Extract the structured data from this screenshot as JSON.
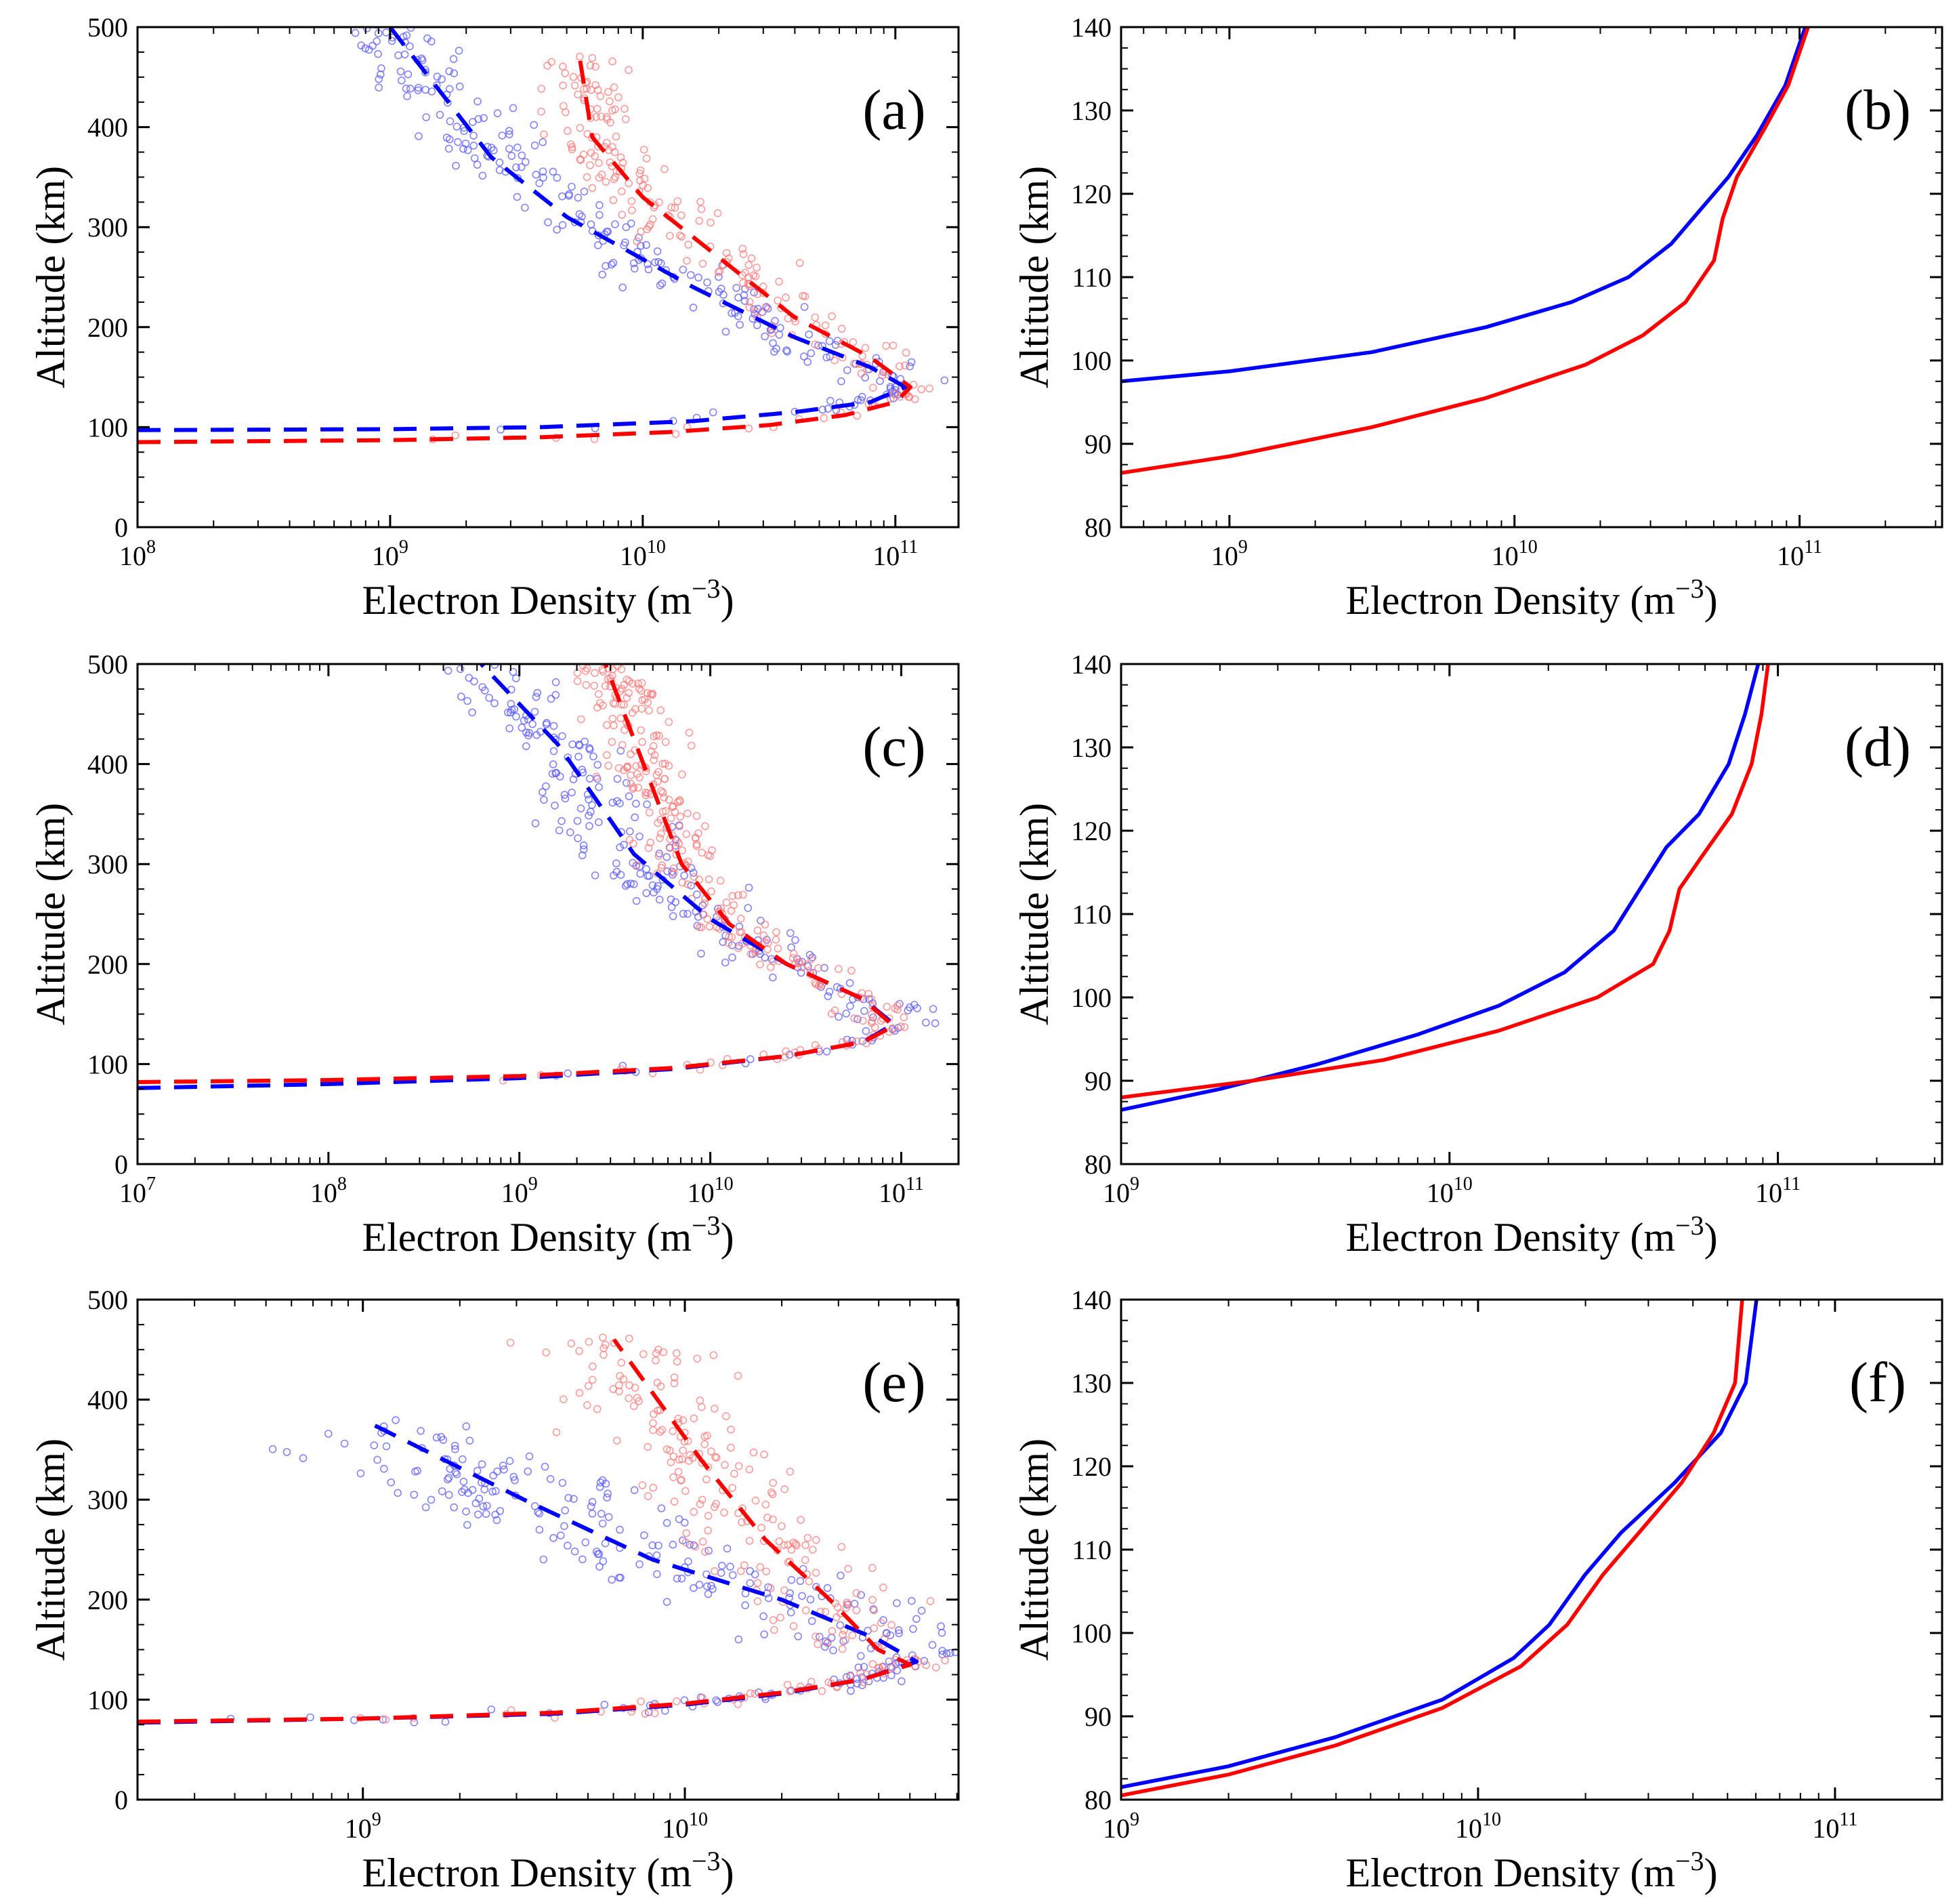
{
  "figure": {
    "colors": {
      "series_blue": "#0000ff",
      "series_red": "#ff0000",
      "axis": "#000000",
      "marker_blue": "#5a5aff",
      "marker_red": "#ff7a7a"
    }
  },
  "chart_data": [
    {
      "panel_label": "(a)",
      "type": "scatter",
      "xlabel": "Electron Density (m",
      "xlabel_sup": "−3",
      "xlabel_close": ")",
      "ylabel": "Altitude (km)",
      "xscale": "log",
      "xlim_exp": [
        8,
        11.25
      ],
      "ylim": [
        0,
        500
      ],
      "xtick_exponents": [
        8,
        9,
        10,
        11
      ],
      "yticks": [
        0,
        100,
        200,
        300,
        400,
        500
      ],
      "series": [
        {
          "color": "blue",
          "style": "dashed",
          "points": [
            [
              8.0,
              97
            ],
            [
              9.0,
              98
            ],
            [
              9.6,
              100
            ],
            [
              10.2,
              106
            ],
            [
              10.6,
              115
            ],
            [
              10.9,
              125
            ],
            [
              11.04,
              140
            ],
            [
              10.9,
              160
            ],
            [
              10.6,
              190
            ],
            [
              10.2,
              240
            ],
            [
              9.7,
              310
            ],
            [
              9.4,
              370
            ],
            [
              9.0,
              500
            ]
          ]
        },
        {
          "color": "red",
          "style": "dashed",
          "points": [
            [
              8.0,
              85
            ],
            [
              9.0,
              87
            ],
            [
              9.6,
              90
            ],
            [
              10.1,
              95
            ],
            [
              10.5,
              102
            ],
            [
              10.8,
              112
            ],
            [
              11.0,
              125
            ],
            [
              11.06,
              140
            ],
            [
              10.9,
              170
            ],
            [
              10.6,
              210
            ],
            [
              10.3,
              270
            ],
            [
              10.0,
              330
            ],
            [
              9.8,
              390
            ],
            [
              9.75,
              470
            ]
          ]
        },
        {
          "color": "blue",
          "style": "markers",
          "n": 260,
          "seed": 11,
          "follow": "blue",
          "spread_exp": 0.22,
          "alt_range": [
            90,
            500
          ]
        },
        {
          "color": "red",
          "style": "markers",
          "n": 240,
          "seed": 23,
          "follow": "red",
          "spread_exp": 0.2,
          "alt_range": [
            85,
            500
          ]
        }
      ]
    },
    {
      "panel_label": "(b)",
      "type": "line",
      "xlabel": "Electron Density (m",
      "xlabel_sup": "−3",
      "xlabel_close": ")",
      "ylabel": "Altitude (km)",
      "xscale": "log",
      "xlim_exp": [
        8.62,
        11.5
      ],
      "ylim": [
        80,
        140
      ],
      "xtick_exponents": [
        9,
        10,
        11
      ],
      "yticks": [
        80,
        90,
        100,
        110,
        120,
        130,
        140
      ],
      "series": [
        {
          "color": "blue",
          "style": "solid",
          "points": [
            [
              8.62,
              97.5
            ],
            [
              9.0,
              98.7
            ],
            [
              9.5,
              101
            ],
            [
              9.9,
              104
            ],
            [
              10.2,
              107
            ],
            [
              10.4,
              110
            ],
            [
              10.55,
              114
            ],
            [
              10.65,
              118
            ],
            [
              10.75,
              122
            ],
            [
              10.85,
              127
            ],
            [
              10.95,
              133
            ],
            [
              11.02,
              140
            ]
          ]
        },
        {
          "color": "red",
          "style": "solid",
          "points": [
            [
              8.62,
              86.5
            ],
            [
              9.0,
              88.5
            ],
            [
              9.5,
              92
            ],
            [
              9.9,
              95.5
            ],
            [
              10.25,
              99.5
            ],
            [
              10.45,
              103
            ],
            [
              10.6,
              107
            ],
            [
              10.7,
              112
            ],
            [
              10.73,
              117
            ],
            [
              10.78,
              122
            ],
            [
              10.88,
              128
            ],
            [
              10.96,
              133
            ],
            [
              11.03,
              140
            ]
          ]
        }
      ]
    },
    {
      "panel_label": "(c)",
      "type": "scatter",
      "xlabel": "Electron Density (m",
      "xlabel_sup": "−3",
      "xlabel_close": ")",
      "ylabel": "Altitude (km)",
      "xscale": "log",
      "xlim_exp": [
        7,
        11.3
      ],
      "ylim": [
        0,
        500
      ],
      "xtick_exponents": [
        7,
        8,
        9,
        10,
        11
      ],
      "yticks": [
        0,
        100,
        200,
        300,
        400,
        500
      ],
      "series": [
        {
          "color": "blue",
          "style": "dashed",
          "points": [
            [
              7.0,
              76
            ],
            [
              8.0,
              80
            ],
            [
              9.0,
              86
            ],
            [
              9.8,
              95
            ],
            [
              10.4,
              108
            ],
            [
              10.8,
              122
            ],
            [
              10.96,
              140
            ],
            [
              10.8,
              165
            ],
            [
              10.4,
              200
            ],
            [
              10.0,
              245
            ],
            [
              9.6,
              310
            ],
            [
              9.2,
              420
            ],
            [
              8.8,
              500
            ]
          ]
        },
        {
          "color": "red",
          "style": "dashed",
          "points": [
            [
              7.0,
              82
            ],
            [
              8.0,
              84
            ],
            [
              9.0,
              88
            ],
            [
              9.8,
              96
            ],
            [
              10.4,
              108
            ],
            [
              10.8,
              122
            ],
            [
              10.96,
              138
            ],
            [
              10.8,
              165
            ],
            [
              10.4,
              200
            ],
            [
              10.1,
              240
            ],
            [
              9.85,
              300
            ],
            [
              9.65,
              400
            ],
            [
              9.45,
              500
            ]
          ]
        },
        {
          "color": "blue",
          "style": "markers",
          "n": 240,
          "seed": 37,
          "follow": "blue",
          "spread_exp": 0.3,
          "alt_range": [
            85,
            500
          ]
        },
        {
          "color": "red",
          "style": "markers",
          "n": 300,
          "seed": 41,
          "follow": "red",
          "spread_exp": 0.22,
          "alt_range": [
            85,
            500
          ]
        }
      ]
    },
    {
      "panel_label": "(d)",
      "type": "line",
      "xlabel": "Electron Density (m",
      "xlabel_sup": "−3",
      "xlabel_close": ")",
      "ylabel": "Altitude (km)",
      "xscale": "log",
      "xlim_exp": [
        9,
        11.5
      ],
      "ylim": [
        80,
        140
      ],
      "xtick_exponents": [
        9,
        10,
        11
      ],
      "yticks": [
        80,
        90,
        100,
        110,
        120,
        130,
        140
      ],
      "series": [
        {
          "color": "blue",
          "style": "solid",
          "points": [
            [
              9.0,
              86.5
            ],
            [
              9.3,
              89
            ],
            [
              9.6,
              92
            ],
            [
              9.9,
              95.5
            ],
            [
              10.15,
              99
            ],
            [
              10.35,
              103
            ],
            [
              10.5,
              108
            ],
            [
              10.58,
              113
            ],
            [
              10.66,
              118
            ],
            [
              10.76,
              122
            ],
            [
              10.85,
              128
            ],
            [
              10.9,
              134
            ],
            [
              10.94,
              140
            ]
          ]
        },
        {
          "color": "red",
          "style": "solid",
          "points": [
            [
              9.0,
              88
            ],
            [
              9.4,
              90
            ],
            [
              9.8,
              92.5
            ],
            [
              10.15,
              96
            ],
            [
              10.45,
              100
            ],
            [
              10.62,
              104
            ],
            [
              10.67,
              108
            ],
            [
              10.7,
              113
            ],
            [
              10.77,
              117
            ],
            [
              10.86,
              122
            ],
            [
              10.92,
              128
            ],
            [
              10.95,
              134
            ],
            [
              10.97,
              140
            ]
          ]
        }
      ]
    },
    {
      "panel_label": "(e)",
      "type": "scatter",
      "xlabel": "Electron Density (m",
      "xlabel_sup": "−3",
      "xlabel_close": ")",
      "ylabel": "Altitude (km)",
      "xscale": "log",
      "xlim_exp": [
        8.3,
        10.85
      ],
      "ylim": [
        0,
        500
      ],
      "xtick_exponents": [
        9,
        10
      ],
      "yticks": [
        0,
        100,
        200,
        300,
        400,
        500
      ],
      "series": [
        {
          "color": "blue",
          "style": "dashed",
          "points": [
            [
              8.3,
              77
            ],
            [
              9.0,
              81
            ],
            [
              9.6,
              86
            ],
            [
              10.0,
              95
            ],
            [
              10.3,
              106
            ],
            [
              10.55,
              120
            ],
            [
              10.72,
              138
            ],
            [
              10.6,
              160
            ],
            [
              10.3,
              200
            ],
            [
              9.9,
              240
            ],
            [
              9.5,
              300
            ],
            [
              9.0,
              380
            ]
          ]
        },
        {
          "color": "red",
          "style": "dashed",
          "points": [
            [
              8.3,
              78
            ],
            [
              9.0,
              81
            ],
            [
              9.6,
              87
            ],
            [
              10.0,
              96
            ],
            [
              10.3,
              107
            ],
            [
              10.55,
              120
            ],
            [
              10.7,
              135
            ],
            [
              10.6,
              150
            ],
            [
              10.45,
              200
            ],
            [
              10.25,
              260
            ],
            [
              10.05,
              340
            ],
            [
              9.78,
              460
            ]
          ]
        },
        {
          "color": "blue",
          "style": "markers",
          "n": 280,
          "seed": 53,
          "follow": "blue",
          "spread_exp": 0.38,
          "alt_range": [
            70,
            380
          ]
        },
        {
          "color": "red",
          "style": "markers",
          "n": 260,
          "seed": 59,
          "follow": "red",
          "spread_exp": 0.28,
          "alt_range": [
            70,
            460
          ]
        }
      ]
    },
    {
      "panel_label": "(f)",
      "type": "line",
      "xlabel": "Electron Density (m",
      "xlabel_sup": "−3",
      "xlabel_close": ")",
      "ylabel": "Altitude (km)",
      "xscale": "log",
      "xlim_exp": [
        9,
        11.3
      ],
      "ylim": [
        80,
        140
      ],
      "xtick_exponents": [
        9,
        10,
        11
      ],
      "yticks": [
        80,
        90,
        100,
        110,
        120,
        130,
        140
      ],
      "series": [
        {
          "color": "blue",
          "style": "solid",
          "points": [
            [
              9.0,
              81.5
            ],
            [
              9.3,
              84
            ],
            [
              9.6,
              87.5
            ],
            [
              9.9,
              92
            ],
            [
              10.1,
              97
            ],
            [
              10.2,
              101
            ],
            [
              10.3,
              107
            ],
            [
              10.4,
              112
            ],
            [
              10.55,
              118
            ],
            [
              10.68,
              124
            ],
            [
              10.75,
              130
            ],
            [
              10.78,
              140
            ]
          ]
        },
        {
          "color": "red",
          "style": "solid",
          "points": [
            [
              9.0,
              80.5
            ],
            [
              9.3,
              83
            ],
            [
              9.6,
              86.5
            ],
            [
              9.9,
              91
            ],
            [
              10.12,
              96
            ],
            [
              10.25,
              101
            ],
            [
              10.35,
              107
            ],
            [
              10.45,
              112
            ],
            [
              10.57,
              118
            ],
            [
              10.66,
              124
            ],
            [
              10.72,
              130
            ],
            [
              10.74,
              140
            ]
          ]
        }
      ]
    }
  ]
}
